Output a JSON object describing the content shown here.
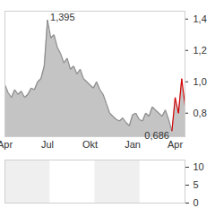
{
  "chart_data": [
    {
      "type": "area",
      "categories": [
        "Apr",
        null,
        null,
        null,
        null,
        null,
        null,
        null,
        null,
        null,
        null,
        null,
        null,
        "Jul",
        null,
        null,
        null,
        null,
        null,
        null,
        null,
        null,
        null,
        null,
        null,
        null,
        "Okt",
        null,
        null,
        null,
        null,
        null,
        null,
        null,
        null,
        null,
        null,
        null,
        null,
        "Jan",
        null,
        null,
        null,
        null,
        null,
        null,
        null,
        null,
        null,
        null,
        null,
        null,
        "Apr",
        null,
        null,
        null
      ],
      "values": [
        0.98,
        0.93,
        0.9,
        0.95,
        0.92,
        0.94,
        0.9,
        0.92,
        0.96,
        0.95,
        1.0,
        1.02,
        1.1,
        1.395,
        1.28,
        1.3,
        1.22,
        1.18,
        1.12,
        1.15,
        1.08,
        1.1,
        1.05,
        1.08,
        1.02,
        1.0,
        0.98,
        0.96,
        1.0,
        0.95,
        0.92,
        0.86,
        0.8,
        0.78,
        0.76,
        0.75,
        0.77,
        0.74,
        0.72,
        0.79,
        0.8,
        0.76,
        0.75,
        0.8,
        0.78,
        0.84,
        0.82,
        0.8,
        0.78,
        0.82,
        0.76,
        0.686,
        0.9,
        0.8,
        1.02,
        0.85
      ],
      "colors": [
        "#8c8c8c",
        "#8c8c8c",
        "#8c8c8c",
        "#8c8c8c",
        "#8c8c8c",
        "#8c8c8c",
        "#8c8c8c",
        "#8c8c8c",
        "#8c8c8c",
        "#8c8c8c",
        "#8c8c8c",
        "#8c8c8c",
        "#8c8c8c",
        "#8c8c8c",
        "#8c8c8c",
        "#8c8c8c",
        "#8c8c8c",
        "#8c8c8c",
        "#8c8c8c",
        "#8c8c8c",
        "#8c8c8c",
        "#8c8c8c",
        "#8c8c8c",
        "#8c8c8c",
        "#8c8c8c",
        "#8c8c8c",
        "#8c8c8c",
        "#8c8c8c",
        "#8c8c8c",
        "#8c8c8c",
        "#8c8c8c",
        "#8c8c8c",
        "#8c8c8c",
        "#8c8c8c",
        "#8c8c8c",
        "#8c8c8c",
        "#8c8c8c",
        "#8c8c8c",
        "#8c8c8c",
        "#8c8c8c",
        "#8c8c8c",
        "#8c8c8c",
        "#8c8c8c",
        "#8c8c8c",
        "#8c8c8c",
        "#8c8c8c",
        "#8c8c8c",
        "#8c8c8c",
        "#8c8c8c",
        "#8c8c8c",
        "#8c8c8c",
        "#8c8c8c",
        "#d40000",
        "#d40000",
        "#d40000",
        "#d40000"
      ],
      "color": "#c4c4c4",
      "ylim": [
        0.65,
        1.45
      ],
      "yticks": [
        {
          "value": 0.8,
          "label": "0,8"
        },
        {
          "value": 1.0,
          "label": "1,0"
        },
        {
          "value": 1.2,
          "label": "1,2"
        },
        {
          "value": 1.4,
          "label": "1,4"
        }
      ],
      "annotations": [
        {
          "label": "1,395",
          "x": 13,
          "y": 1.395
        },
        {
          "label": "0,686",
          "x": 51,
          "y": 0.686
        }
      ],
      "grid": false
    },
    {
      "type": "bar",
      "x": [],
      "values": [],
      "ylim": [
        0,
        12
      ],
      "yticks": [
        0,
        5,
        10
      ],
      "tick_labels": "y",
      "grid": false
    }
  ]
}
